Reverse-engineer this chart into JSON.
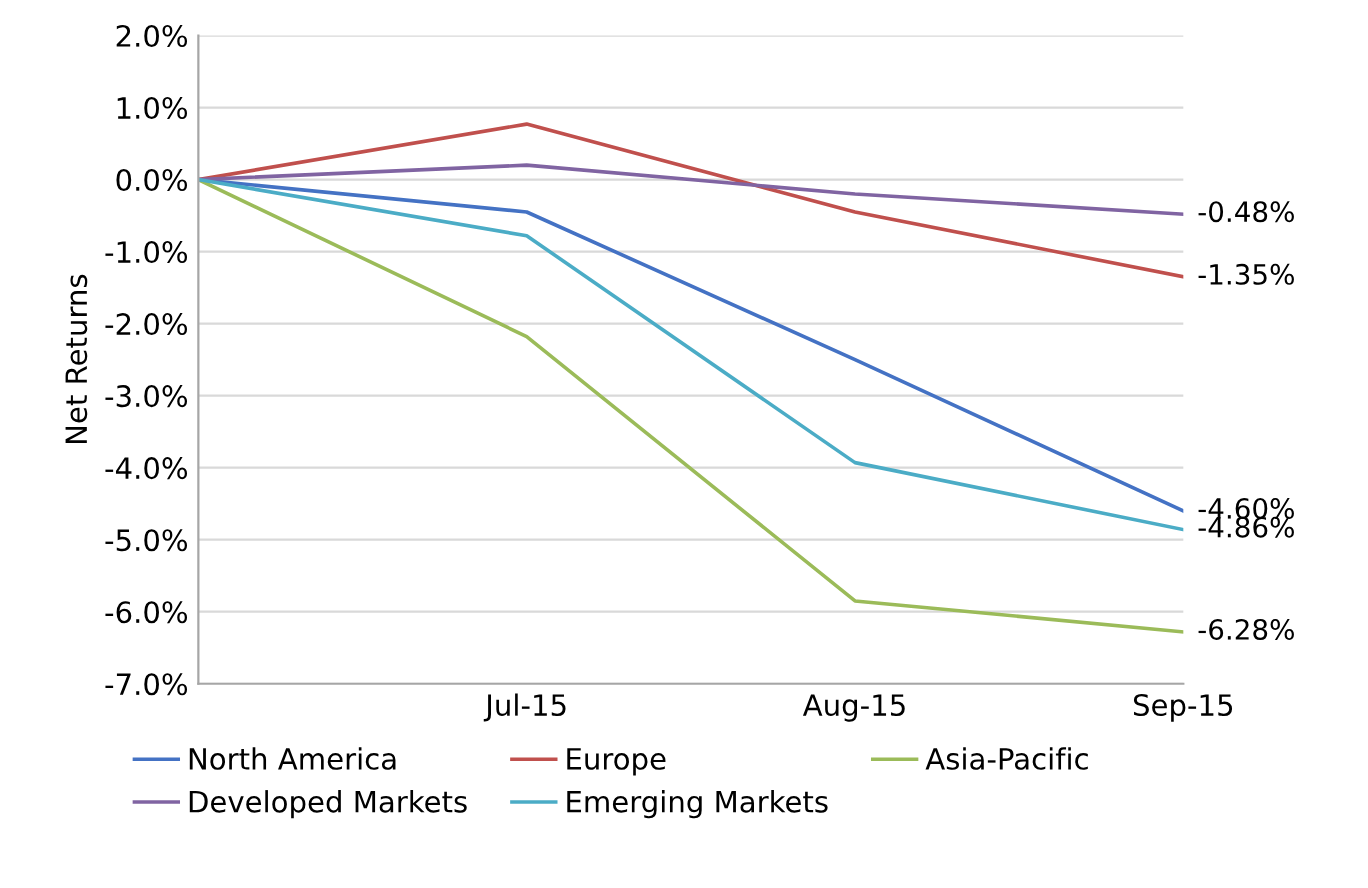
{
  "chart_data": {
    "type": "line",
    "ylabel": "Net Returns",
    "categories": [
      null,
      "Jul-15",
      "Aug-15",
      "Sep-15"
    ],
    "series": [
      {
        "name": "North America",
        "color": "#4472c4",
        "values": [
          0,
          -0.45,
          -2.5,
          -4.6
        ],
        "value_labels": [
          null,
          null,
          null,
          "-4.60%"
        ]
      },
      {
        "name": "Europe",
        "color": "#c0504d",
        "values": [
          0,
          0.77,
          -0.45,
          -1.35
        ],
        "value_labels": [
          null,
          null,
          null,
          "-1.35%"
        ]
      },
      {
        "name": "Asia-Pacific",
        "color": "#9bbb59",
        "values": [
          0,
          -2.18,
          -5.85,
          -6.28
        ],
        "value_labels": [
          null,
          null,
          null,
          "-6.28%"
        ]
      },
      {
        "name": "Developed Markets",
        "color": "#8064a2",
        "values": [
          0,
          0.2,
          -0.2,
          -0.48
        ],
        "value_labels": [
          null,
          null,
          null,
          "-0.48%"
        ]
      },
      {
        "name": "Emerging Markets",
        "color": "#4bacc6",
        "values": [
          0,
          -0.78,
          -3.93,
          -4.86
        ],
        "value_labels": [
          null,
          null,
          null,
          "-4.86%"
        ]
      }
    ],
    "ylim": [
      -7,
      2
    ],
    "yticks": [
      {
        "value": 2,
        "label": "2.0%"
      },
      {
        "value": 1,
        "label": "1.0%"
      },
      {
        "value": 0,
        "label": "0.0%"
      },
      {
        "value": -1,
        "label": "-1.0%"
      },
      {
        "value": -2,
        "label": "-2.0%"
      },
      {
        "value": -3,
        "label": "-3.0%"
      },
      {
        "value": -4,
        "label": "-4.0%"
      },
      {
        "value": -5,
        "label": "-5.0%"
      },
      {
        "value": -6,
        "label": "-6.0%"
      },
      {
        "value": -7,
        "label": "-7.0%"
      }
    ],
    "grid": "y",
    "legend": "bottom",
    "marker": "none",
    "line_style": "solid"
  }
}
